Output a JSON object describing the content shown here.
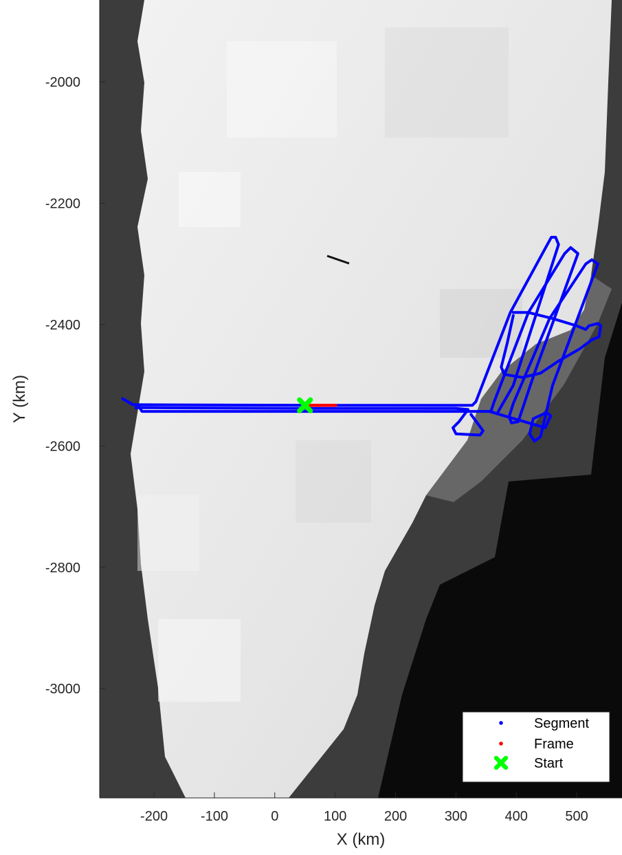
{
  "chart_data": {
    "type": "scatter",
    "title": "",
    "xlabel": "X (km)",
    "ylabel": "Y (km)",
    "xlim": [
      -290,
      575
    ],
    "ylim": [
      -3180,
      -1865
    ],
    "xticks": [
      -200,
      -100,
      0,
      100,
      200,
      300,
      400,
      500
    ],
    "yticks": [
      -3000,
      -2800,
      -2600,
      -2400,
      -2200,
      -2000
    ],
    "grid": false,
    "legend_position": "bottom-right",
    "background": "grayscale satellite mosaic",
    "series": [
      {
        "name": "Segment",
        "color": "#0000ff",
        "marker": "point",
        "paths": [
          [
            [
              -252,
              -2522
            ],
            [
              -235,
              -2532
            ],
            [
              -225,
              -2532
            ],
            [
              100,
              -2533
            ],
            [
              250,
              -2533
            ],
            [
              327,
              -2533
            ],
            [
              333,
              -2527
            ],
            [
              390,
              -2380
            ],
            [
              447,
              -2276
            ],
            [
              458,
              -2256
            ],
            [
              465,
              -2256
            ],
            [
              470,
              -2268
            ],
            [
              395,
              -2500
            ],
            [
              368,
              -2547
            ],
            [
              358,
              -2543
            ],
            [
              363,
              -2528
            ],
            [
              420,
              -2380
            ],
            [
              480,
              -2283
            ],
            [
              490,
              -2273
            ],
            [
              502,
              -2283
            ],
            [
              430,
              -2480
            ],
            [
              403,
              -2560
            ],
            [
              392,
              -2562
            ],
            [
              388,
              -2552
            ],
            [
              395,
              -2530
            ],
            [
              455,
              -2390
            ],
            [
              515,
              -2300
            ],
            [
              525,
              -2293
            ],
            [
              535,
              -2300
            ],
            [
              460,
              -2500
            ],
            [
              440,
              -2585
            ],
            [
              430,
              -2592
            ],
            [
              422,
              -2580
            ],
            [
              428,
              -2555
            ],
            [
              450,
              -2545
            ],
            [
              457,
              -2550
            ],
            [
              448,
              -2570
            ],
            [
              355,
              -2543
            ],
            [
              330,
              -2543
            ],
            [
              50,
              -2543
            ],
            [
              -220,
              -2543
            ],
            [
              -225,
              -2535
            ]
          ],
          [
            [
              -230,
              -2537
            ],
            [
              -205,
              -2537
            ],
            [
              50,
              -2538
            ],
            [
              300,
              -2538
            ],
            [
              320,
              -2540
            ],
            [
              305,
              -2560
            ],
            [
              295,
              -2570
            ],
            [
              300,
              -2580
            ],
            [
              340,
              -2582
            ],
            [
              345,
              -2575
            ],
            [
              325,
              -2548
            ]
          ],
          [
            [
              395,
              -2380
            ],
            [
              420,
              -2380
            ],
            [
              460,
              -2390
            ],
            [
              500,
              -2402
            ],
            [
              515,
              -2408
            ],
            [
              520,
              -2402
            ],
            [
              535,
              -2398
            ],
            [
              540,
              -2402
            ],
            [
              537,
              -2420
            ],
            [
              525,
              -2425
            ],
            [
              505,
              -2440
            ],
            [
              470,
              -2460
            ],
            [
              440,
              -2480
            ],
            [
              410,
              -2487
            ],
            [
              380,
              -2482
            ],
            [
              375,
              -2470
            ],
            [
              385,
              -2430
            ],
            [
              395,
              -2385
            ]
          ]
        ]
      },
      {
        "name": "Frame",
        "color": "#ff0000",
        "marker": "point",
        "paths": [
          [
            [
              50,
              -2533
            ],
            [
              101,
              -2533
            ]
          ]
        ]
      },
      {
        "name": "Start",
        "color": "#00ff00",
        "marker": "X",
        "points": [
          [
            50,
            -2533
          ]
        ]
      }
    ]
  }
}
